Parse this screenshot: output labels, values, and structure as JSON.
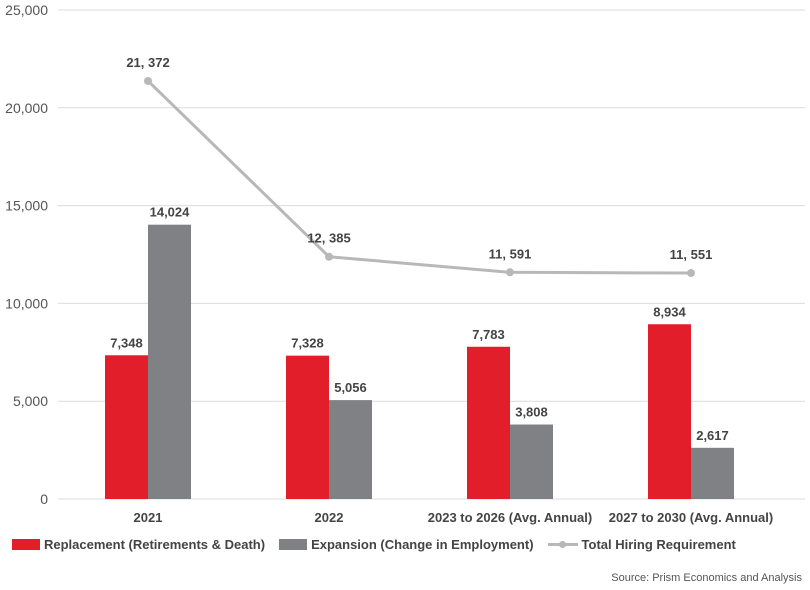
{
  "chart_data": {
    "type": "bar",
    "categories": [
      "2021",
      "2022",
      "2023 to 2026 (Avg. Annual)",
      "2027 to 2030 (Avg. Annual)"
    ],
    "series": [
      {
        "name": "Replacement (Retirements & Death)",
        "kind": "bar",
        "color": "#e31e2b",
        "values": [
          7348,
          7328,
          7783,
          8934
        ],
        "labels": [
          "7,348",
          "7,328",
          "7,783",
          "8,934"
        ]
      },
      {
        "name": "Expansion (Change in Employment)",
        "kind": "bar",
        "color": "#808184",
        "values": [
          14024,
          5056,
          3808,
          2617
        ],
        "labels": [
          "14,024",
          "5,056",
          "3,808",
          "2,617"
        ]
      },
      {
        "name": "Total Hiring Requirement",
        "kind": "line",
        "color": "#b8b8b8",
        "values": [
          21372,
          12385,
          11591,
          11551
        ],
        "labels": [
          "21, 372",
          "12, 385",
          "11, 591",
          "11, 551"
        ]
      }
    ],
    "yticks": [
      0,
      5000,
      10000,
      15000,
      20000,
      25000
    ],
    "ytick_labels": [
      "0",
      "5,000",
      "10,000",
      "15,000",
      "20,000",
      "25,000"
    ],
    "ylim": [
      0,
      25000
    ],
    "xlabel": "",
    "ylabel": "",
    "grid": true,
    "legend_position": "bottom"
  },
  "source": "Source: Prism Economics and Analysis"
}
